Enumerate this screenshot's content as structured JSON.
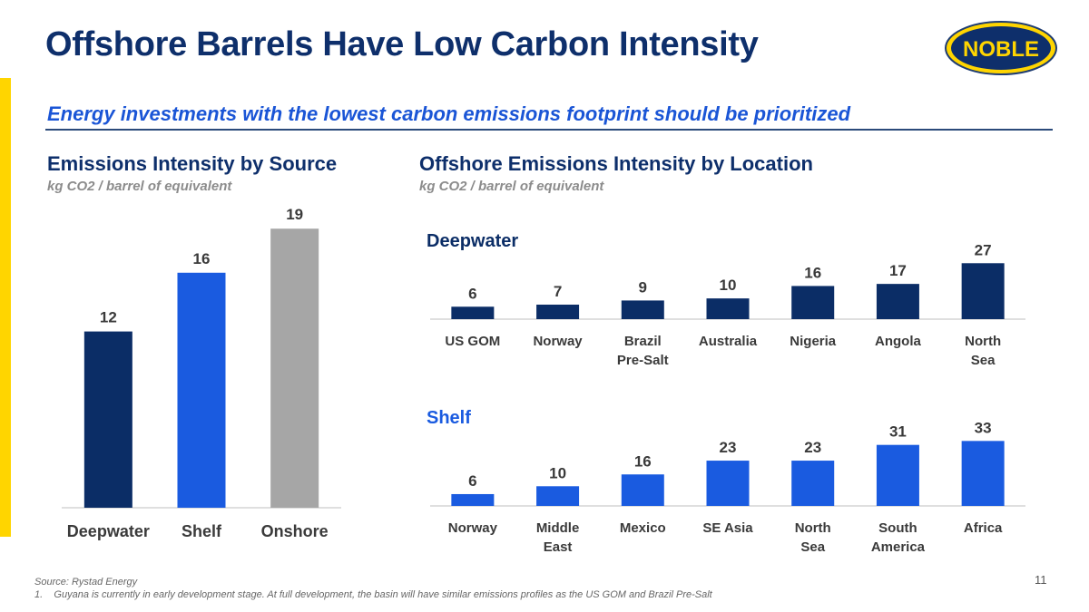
{
  "page": {
    "title": "Offshore Barrels Have Low Carbon Intensity",
    "subtitle": "Energy investments with the lowest carbon emissions footprint should be prioritized",
    "logo_text": "NOBLE",
    "page_number": "11",
    "source": "Source: Rystad Energy",
    "footnote_marker": "1.",
    "footnote": "Guyana is currently in early development stage.  At full development, the basin will have similar emissions profiles as the US GOM and Brazil Pre-Salt"
  },
  "colors": {
    "navy": "#0B2D66",
    "blue": "#1A5BE0",
    "gray": "#A6A6A6",
    "accent": "#FFD500",
    "axis": "#BFBFBF"
  },
  "chart_data": [
    {
      "type": "bar",
      "title": "Emissions Intensity by Source",
      "ylabel": "kg CO2 / barrel of equivalent",
      "categories": [
        "Deepwater",
        "Shelf",
        "Onshore"
      ],
      "values": [
        12,
        16,
        19
      ],
      "bar_colors": [
        "#0B2D66",
        "#1A5BE0",
        "#A6A6A6"
      ],
      "ylim": [
        0,
        20
      ],
      "grid": false
    },
    {
      "type": "bar",
      "title": "Offshore Emissions Intensity by Location",
      "ylabel": "kg CO2 / barrel of equivalent",
      "panels": [
        {
          "name": "Deepwater",
          "label_color": "#0B2D66",
          "bar_color": "#0B2D66",
          "categories": [
            [
              "US GOM"
            ],
            [
              "Norway"
            ],
            [
              "Brazil",
              "Pre-Salt"
            ],
            [
              "Australia"
            ],
            [
              "Nigeria"
            ],
            [
              "Angola"
            ],
            [
              "North",
              "Sea"
            ]
          ],
          "values": [
            6,
            7,
            9,
            10,
            16,
            17,
            27
          ],
          "ylim": [
            0,
            28
          ]
        },
        {
          "name": "Shelf",
          "label_color": "#1A5BE0",
          "bar_color": "#1A5BE0",
          "categories": [
            [
              "Norway"
            ],
            [
              "Middle",
              "East"
            ],
            [
              "Mexico"
            ],
            [
              "SE Asia"
            ],
            [
              "North",
              "Sea"
            ],
            [
              "South",
              "America"
            ],
            [
              "Africa"
            ]
          ],
          "values": [
            6,
            10,
            16,
            23,
            23,
            31,
            33
          ],
          "ylim": [
            0,
            35
          ]
        }
      ],
      "grid": false
    }
  ]
}
